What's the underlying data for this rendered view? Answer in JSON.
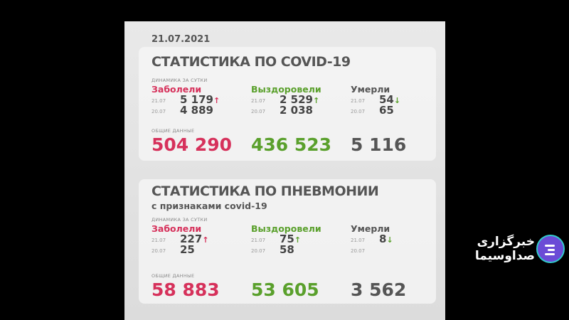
{
  "date": "21.07.2021",
  "covid": {
    "title": "СТАТИСТИКА ПО COVID-19",
    "daily_label": "ДИНАМИКА ЗА СУТКИ",
    "total_label": "ОБЩИЕ ДАННЫЕ",
    "columns": [
      {
        "label": "Заболели",
        "rows": [
          {
            "date": "21.07",
            "value": "5 179",
            "trend": "↑"
          },
          {
            "date": "20.07",
            "value": "4 889"
          }
        ],
        "total": "504 290"
      },
      {
        "label": "Выздоровели",
        "rows": [
          {
            "date": "21.07",
            "value": "2 529",
            "trend": "↑"
          },
          {
            "date": "20.07",
            "value": "2 038"
          }
        ],
        "total": "436 523"
      },
      {
        "label": "Умерли",
        "rows": [
          {
            "date": "21.07",
            "value": "54",
            "trend": "↓"
          },
          {
            "date": "20.07",
            "value": "65"
          }
        ],
        "total": "5 116"
      }
    ]
  },
  "pneumonia": {
    "title": "СТАТИСТИКА ПО ПНЕВМОНИИ",
    "subtitle": "с признаками covid-19",
    "daily_label": "ДИНАМИКА ЗА СУТКИ",
    "total_label": "ОБЩИЕ ДАННЫЕ",
    "columns": [
      {
        "label": "Заболели",
        "rows": [
          {
            "date": "21.07",
            "value": "227",
            "trend": "↑"
          },
          {
            "date": "20.07",
            "value": "25"
          }
        ],
        "total": "58 883"
      },
      {
        "label": "Выздоровели",
        "rows": [
          {
            "date": "21.07",
            "value": "75",
            "trend": "↑"
          },
          {
            "date": "20.07",
            "value": "58"
          }
        ],
        "total": "53 605"
      },
      {
        "label": "Умерли",
        "rows": [
          {
            "date": "21.07",
            "value": "8",
            "trend": "↓"
          },
          {
            "date": "20.07",
            "value": ""
          }
        ],
        "total": "3 562"
      }
    ]
  },
  "broadcaster": {
    "name": "خبرگزاری صداوسیما",
    "icon": "chat-bubble-icon"
  },
  "colors": {
    "sick": "#d6315b",
    "recovered": "#5aa02c",
    "died": "#555555",
    "logo": "#6b4bd6"
  }
}
